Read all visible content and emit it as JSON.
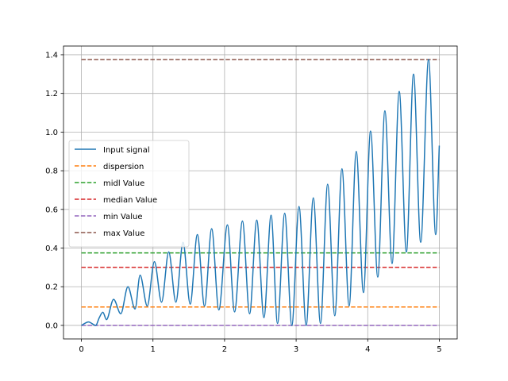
{
  "chart_data": {
    "type": "line",
    "title": "",
    "xlabel": "",
    "ylabel": "",
    "xlim": [
      -0.25,
      5.25
    ],
    "ylim": [
      -0.07,
      1.445
    ],
    "xticks": [
      0,
      1,
      2,
      3,
      4,
      5
    ],
    "xtick_labels": [
      "0",
      "1",
      "2",
      "3",
      "4",
      "5"
    ],
    "yticks": [
      0.0,
      0.2,
      0.4,
      0.6,
      0.8,
      1.0,
      1.2,
      1.4
    ],
    "ytick_labels": [
      "0.0",
      "0.2",
      "0.4",
      "0.6",
      "0.8",
      "1.0",
      "1.2",
      "1.4"
    ],
    "grid": true,
    "legend_position": "center-left",
    "signal": {
      "name": "Input signal",
      "color": "#1f77b4",
      "x": [
        0.0,
        0.1,
        0.2,
        0.25,
        0.3,
        0.35,
        0.45,
        0.55,
        0.65,
        0.75,
        0.82,
        0.92,
        1.02,
        1.12,
        1.22,
        1.32,
        1.42,
        1.52,
        1.62,
        1.72,
        1.82,
        1.92,
        2.04,
        2.14,
        2.25,
        2.35,
        2.45,
        2.55,
        2.65,
        2.74,
        2.84,
        2.94,
        3.04,
        3.14,
        3.24,
        3.34,
        3.44,
        3.54,
        3.64,
        3.74,
        3.84,
        3.94,
        4.04,
        4.14,
        4.24,
        4.34,
        4.44,
        4.54,
        4.64,
        4.74,
        4.85,
        4.95,
        5.0
      ],
      "y": [
        0.0,
        0.018,
        0.0,
        0.04,
        0.068,
        0.03,
        0.135,
        0.06,
        0.2,
        0.085,
        0.26,
        0.1,
        0.33,
        0.12,
        0.38,
        0.12,
        0.43,
        0.11,
        0.47,
        0.1,
        0.5,
        0.08,
        0.52,
        0.07,
        0.54,
        0.06,
        0.545,
        0.04,
        0.57,
        0.01,
        0.58,
        0.0,
        0.615,
        0.0,
        0.66,
        0.01,
        0.73,
        0.05,
        0.81,
        0.1,
        0.9,
        0.17,
        1.005,
        0.25,
        1.11,
        0.32,
        1.21,
        0.38,
        1.3,
        0.43,
        1.375,
        0.47,
        0.93
      ]
    },
    "series": [
      {
        "name": "dispersion",
        "value": 0.095,
        "color": "#ff7f0e"
      },
      {
        "name": "midl Value",
        "value": 0.375,
        "color": "#2ca02c"
      },
      {
        "name": "median Value",
        "value": 0.3,
        "color": "#d62728"
      },
      {
        "name": "min Value",
        "value": 0.0,
        "color": "#9467bd"
      },
      {
        "name": "max Value",
        "value": 1.375,
        "color": "#8c564b"
      }
    ]
  }
}
